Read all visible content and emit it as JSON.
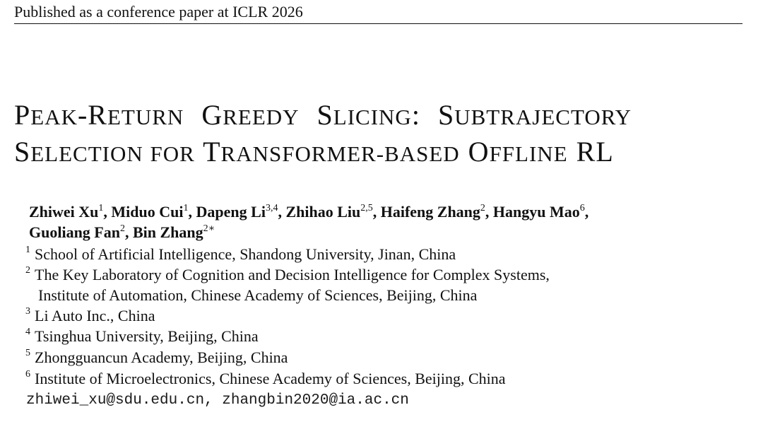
{
  "header": {
    "text": "Published as a conference paper at ICLR 2026"
  },
  "title": {
    "line1": [
      {
        "cap": "P",
        "rest": "EAK"
      },
      {
        "plain": "-"
      },
      {
        "cap": "R",
        "rest": "ETURN"
      },
      {
        "plain": " "
      },
      {
        "cap": "G",
        "rest": "REEDY"
      },
      {
        "plain": " "
      },
      {
        "cap": "S",
        "rest": "LICING"
      },
      {
        "plain": ": "
      },
      {
        "cap": "S",
        "rest": "UBTRAJECTORY"
      }
    ],
    "line2": [
      {
        "cap": "S",
        "rest": "ELECTION FOR"
      },
      {
        "plain": " "
      },
      {
        "cap": "T",
        "rest": "RANSFORMER-BASED"
      },
      {
        "plain": " "
      },
      {
        "cap": "O",
        "rest": "FFLINE"
      },
      {
        "plain": " "
      },
      {
        "cap": "RL",
        "rest": ""
      }
    ]
  },
  "authors": {
    "line1": [
      {
        "name": "Zhiwei Xu",
        "sup": "1",
        "sep": ", "
      },
      {
        "name": "Miduo Cui",
        "sup": "1",
        "sep": ", "
      },
      {
        "name": "Dapeng Li",
        "sup": "3,4",
        "sep": ", "
      },
      {
        "name": "Zhihao Liu",
        "sup": "2,5",
        "sep": ", "
      },
      {
        "name": "Haifeng Zhang",
        "sup": "2",
        "sep": ", "
      },
      {
        "name": "Hangyu Mao",
        "sup": "6",
        "sep": ","
      }
    ],
    "line2": [
      {
        "name": "Guoliang Fan",
        "sup": "2",
        "sep": ", "
      },
      {
        "name": "Bin Zhang",
        "sup": "2∗",
        "sep": ""
      }
    ]
  },
  "affiliations": [
    {
      "num": "1",
      "text": "School of Artificial Intelligence, Shandong University, Jinan, China"
    },
    {
      "num": "2",
      "text": "The Key Laboratory of Cognition and Decision Intelligence for Complex Systems,",
      "cont": "Institute of Automation, Chinese Academy of Sciences, Beijing, China"
    },
    {
      "num": "3",
      "text": "Li Auto Inc., China"
    },
    {
      "num": "4",
      "text": "Tsinghua University, Beijing, China"
    },
    {
      "num": "5",
      "text": "Zhongguancun Academy, Beijing, China"
    },
    {
      "num": "6",
      "text": "Institute of Microelectronics, Chinese Academy of Sciences, Beijing, China"
    }
  ],
  "emails": "zhiwei_xu@sdu.edu.cn, zhangbin2020@ia.ac.cn"
}
